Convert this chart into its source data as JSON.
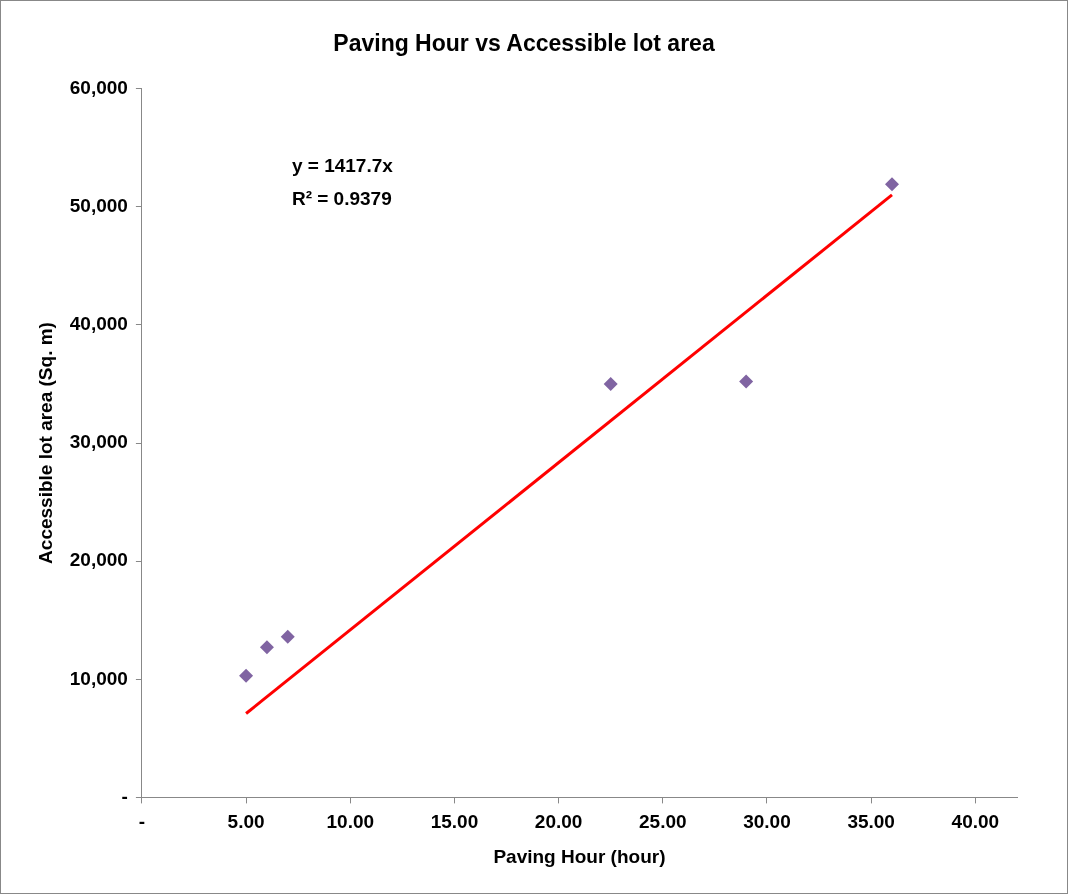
{
  "chart_data": {
    "type": "scatter",
    "title": "Paving Hour vs Accessible lot area",
    "xlabel": "Paving Hour (hour)",
    "ylabel": "Accessible lot area (Sq. m)",
    "series": [
      {
        "type": "scatter",
        "color": "#8064a2",
        "x": [
          5,
          6,
          7,
          22.5,
          29,
          36
        ],
        "values": [
          10300,
          12700,
          13600,
          35000,
          35200,
          51900
        ]
      },
      {
        "type": "line",
        "color": "#ff0000",
        "x": [
          5,
          36
        ],
        "values": [
          7100,
          51000
        ],
        "marker": "none"
      }
    ],
    "xlim": [
      0,
      42
    ],
    "xticks": [
      {
        "value": 0,
        "label": "-"
      },
      {
        "value": 5,
        "label": "5.00"
      },
      {
        "value": 10,
        "label": "10.00"
      },
      {
        "value": 15,
        "label": "15.00"
      },
      {
        "value": 20,
        "label": "20.00"
      },
      {
        "value": 25,
        "label": "25.00"
      },
      {
        "value": 30,
        "label": "30.00"
      },
      {
        "value": 35,
        "label": "35.00"
      },
      {
        "value": 40,
        "label": "40.00"
      }
    ],
    "ylim": [
      0,
      60000
    ],
    "yticks": [
      {
        "value": 0,
        "label": "-"
      },
      {
        "value": 10000,
        "label": "10,000"
      },
      {
        "value": 20000,
        "label": "20,000"
      },
      {
        "value": 30000,
        "label": "30,000"
      },
      {
        "value": 40000,
        "label": "40,000"
      },
      {
        "value": 50000,
        "label": "50,000"
      },
      {
        "value": 60000,
        "label": "60,000"
      }
    ],
    "annotations": [
      "y = 1417.7x",
      "R² = 0.9379"
    ],
    "grid": false,
    "legend": false,
    "marker": "diamond",
    "line_style": "solid"
  }
}
